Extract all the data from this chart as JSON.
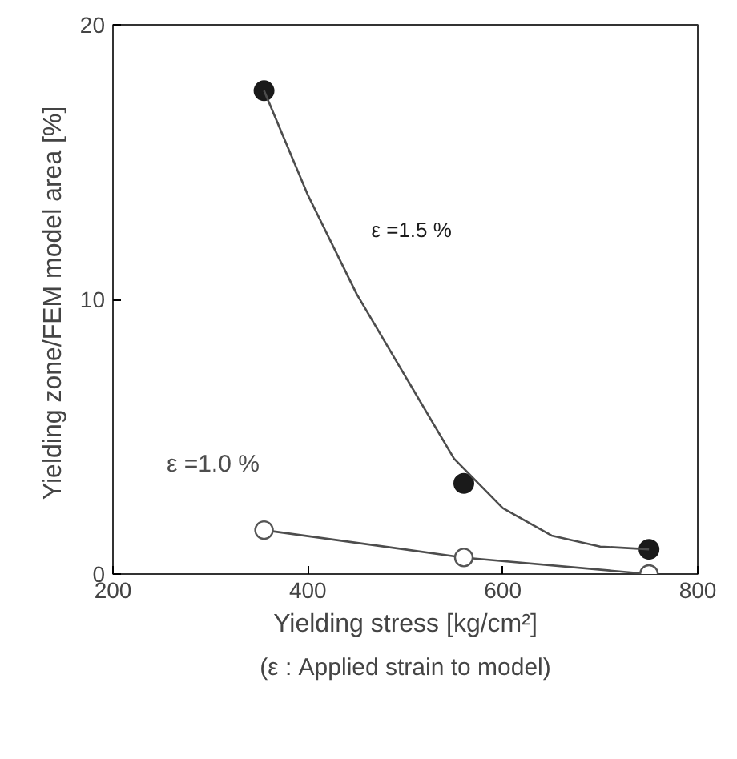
{
  "chart_data": {
    "type": "scatter",
    "xlabel": "Yielding stress [kg/cm²]",
    "ylabel": "Yielding zone/FEM model area  [%]",
    "xlim": [
      200,
      800
    ],
    "xticks": [
      200,
      400,
      600,
      800
    ],
    "ylim": [
      0,
      20
    ],
    "yticks": [
      0,
      10,
      20
    ],
    "grid": false,
    "series": [
      {
        "name": "ε =1.5 %",
        "color": "#1a1a1a",
        "marker": "circle",
        "x": [
          355,
          560,
          750
        ],
        "values": [
          17.6,
          3.3,
          0.9
        ]
      },
      {
        "type": "line",
        "color": "#4d4d4d",
        "marker": "none",
        "x": [
          355,
          400,
          450,
          500,
          550,
          600,
          650,
          700,
          750
        ],
        "values": [
          17.6,
          13.8,
          10.2,
          7.2,
          4.2,
          2.4,
          1.4,
          1.0,
          0.9
        ]
      },
      {
        "name": "ε =1.0 %",
        "type": "line",
        "color": "#4d4d4d",
        "marker": "circle",
        "x": [
          355,
          560,
          750
        ],
        "values": [
          1.6,
          0.6,
          0.0
        ]
      }
    ],
    "annotations": [
      "(ε : Applied strain to model)"
    ]
  }
}
